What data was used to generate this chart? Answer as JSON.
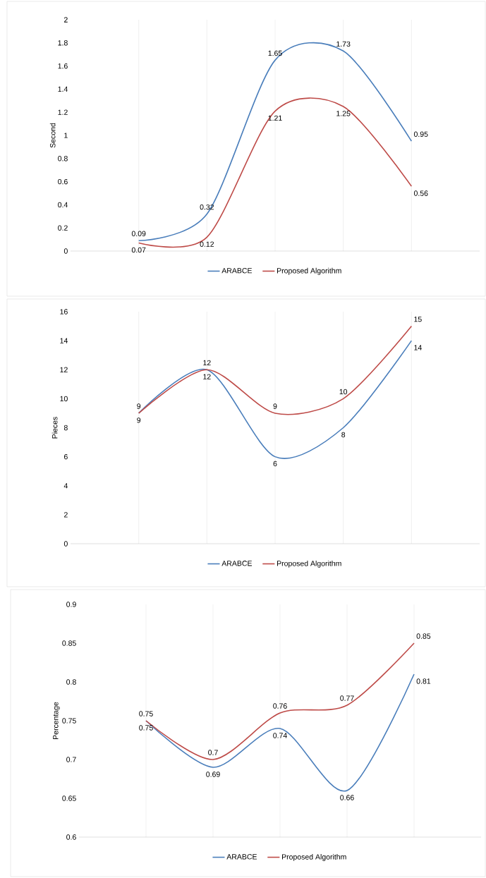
{
  "chart_data": [
    {
      "type": "line",
      "categories": [
        null,
        null,
        null,
        null,
        null
      ],
      "ylabel": "Second",
      "ylim": [
        0,
        2
      ],
      "yticks": [
        0,
        0.2,
        0.4,
        0.6,
        0.8,
        1,
        1.2,
        1.4,
        1.6,
        1.8,
        2
      ],
      "grid": "x",
      "legend": "bottom",
      "tick_labels": "y",
      "data_labels": true,
      "series": [
        {
          "name": "ARABCE",
          "color": "#4a7ebb",
          "values": [
            0.09,
            0.32,
            1.65,
            1.73,
            0.95
          ]
        },
        {
          "name": "Proposed Algorithm",
          "color": "#be4b48",
          "values": [
            0.07,
            0.12,
            1.21,
            1.25,
            0.56
          ]
        }
      ]
    },
    {
      "type": "line",
      "categories": [
        null,
        null,
        null,
        null,
        null
      ],
      "ylabel": "Pieces",
      "ylim": [
        0,
        16
      ],
      "yticks": [
        0,
        2,
        4,
        6,
        8,
        10,
        12,
        14,
        16
      ],
      "grid": "x",
      "legend": "bottom",
      "tick_labels": "y",
      "data_labels": true,
      "series": [
        {
          "name": "ARABCE",
          "color": "#4a7ebb",
          "values": [
            9,
            12,
            6,
            8,
            14
          ]
        },
        {
          "name": "Proposed Algorithm",
          "color": "#be4b48",
          "values": [
            9,
            12,
            9,
            10,
            15
          ]
        }
      ]
    },
    {
      "type": "line",
      "categories": [
        null,
        null,
        null,
        null,
        null
      ],
      "ylabel": "Percentage",
      "ylim": [
        0.6,
        0.9
      ],
      "yticks": [
        0.6,
        0.65,
        0.7,
        0.75,
        0.8,
        0.85,
        0.9
      ],
      "grid": "x",
      "legend": "bottom",
      "tick_labels": "y",
      "data_labels": true,
      "series": [
        {
          "name": "ARABCE",
          "color": "#4a7ebb",
          "values": [
            0.75,
            0.69,
            0.74,
            0.66,
            0.81
          ]
        },
        {
          "name": "Proposed Algorithm",
          "color": "#be4b48",
          "values": [
            0.75,
            0.7,
            0.76,
            0.77,
            0.85
          ]
        }
      ]
    }
  ]
}
